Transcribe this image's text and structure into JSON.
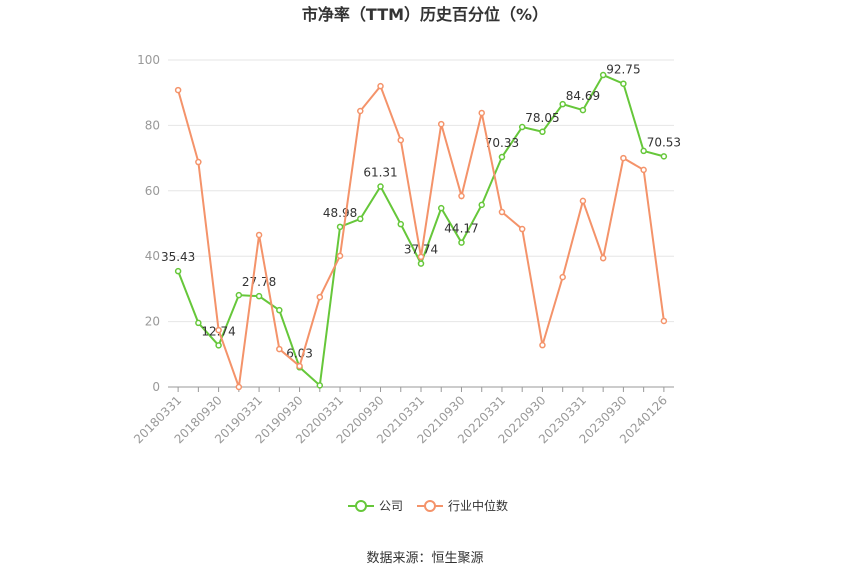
{
  "chart_data": {
    "type": "line",
    "title": "市净率（TTM）历史百分位（%）",
    "source": "数据来源：恒生聚源",
    "categories": [
      "20180331",
      null,
      "20180930",
      null,
      "20190331",
      null,
      "20190930",
      null,
      "20200331",
      null,
      "20200930",
      null,
      "20210331",
      null,
      "20210930",
      null,
      "20220331",
      null,
      "20220930",
      null,
      "20230331",
      null,
      "20230930",
      null,
      "20240126"
    ],
    "series": [
      {
        "name": "公司",
        "color": "#66c73a",
        "values": [
          35.43,
          19.6,
          12.74,
          28.1,
          27.78,
          23.5,
          6.03,
          0.5,
          48.98,
          51.4,
          61.31,
          49.8,
          37.74,
          54.7,
          44.17,
          55.7,
          70.33,
          79.5,
          78.05,
          86.5,
          84.69,
          95.4,
          92.75,
          72.2,
          70.53
        ],
        "value_labels": [
          "35.43",
          null,
          "12.74",
          null,
          "27.78",
          null,
          "6.03",
          null,
          "48.98",
          null,
          "61.31",
          null,
          "37.74",
          null,
          "44.17",
          null,
          "70.33",
          null,
          "78.05",
          null,
          "84.69",
          null,
          "92.75",
          null,
          "70.53"
        ]
      },
      {
        "name": "行业中位数",
        "color": "#f4936a",
        "values": [
          90.8,
          68.8,
          17.4,
          0,
          46.5,
          11.6,
          6.4,
          27.5,
          40.1,
          84.4,
          92.0,
          75.5,
          39.8,
          80.4,
          58.4,
          83.8,
          53.5,
          48.3,
          12.8,
          33.6,
          56.9,
          39.4,
          70.0,
          66.4,
          20.2
        ]
      }
    ],
    "ylim": [
      0,
      100
    ],
    "yticks": [
      0,
      20,
      40,
      60,
      80,
      100
    ],
    "grid": true,
    "legend": "bottom"
  }
}
